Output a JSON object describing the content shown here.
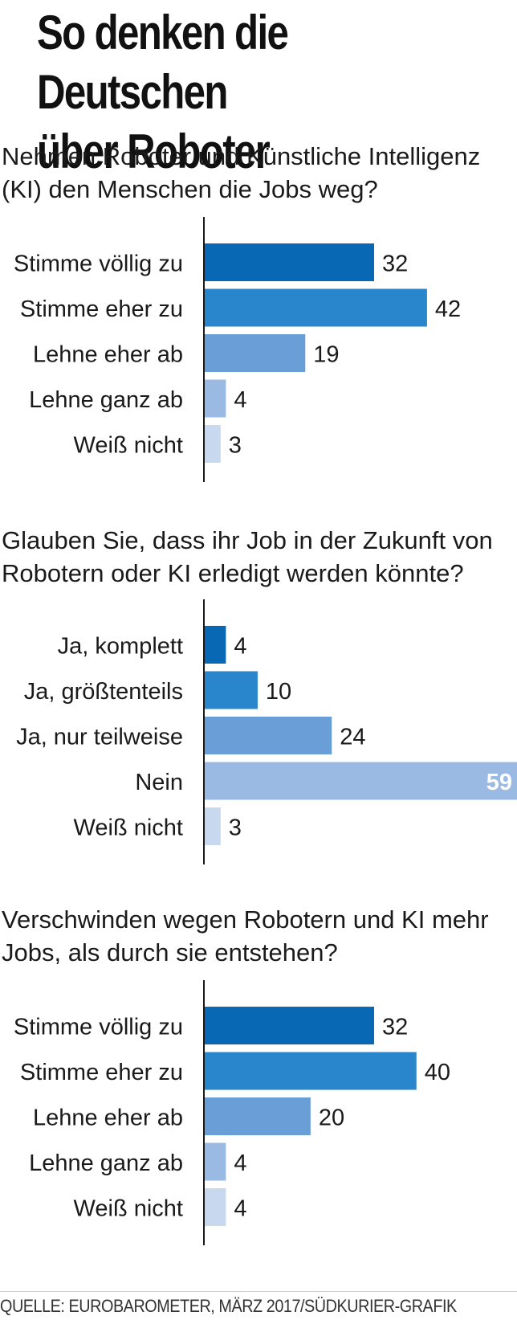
{
  "title": {
    "line1": "So denken die Deutschen",
    "line2": "über Roboter"
  },
  "source": "QUELLE: EUROBAROMETER, MÄRZ 2017/SÜDKURIER-GRAFIK",
  "colors": [
    "#0868b3",
    "#2a86cc",
    "#6a9ed6",
    "#9bbae3",
    "#c8d8ee"
  ],
  "chart_data": [
    {
      "type": "bar",
      "orientation": "horizontal",
      "title": "Nehmen Roboter und Künstliche Intelligenz (KI) den Menschen die Jobs weg?",
      "title_lines": [
        "Nehmen Roboter und Künstliche Intelligenz",
        "(KI) den Menschen die Jobs weg?"
      ],
      "categories": [
        "Stimme völlig zu",
        "Stimme eher zu",
        "Lehne eher ab",
        "Lehne ganz ab",
        "Weiß nicht"
      ],
      "values": [
        32,
        42,
        19,
        4,
        3
      ],
      "xlim": [
        0,
        59
      ]
    },
    {
      "type": "bar",
      "orientation": "horizontal",
      "title": "Glauben Sie, dass ihr Job in der Zukunft von Robotern oder KI erledigt werden könnte?",
      "title_lines": [
        "Glauben Sie, dass ihr Job in der Zukunft von",
        "Robotern oder KI erledigt werden könnte?"
      ],
      "categories": [
        "Ja, komplett",
        "Ja, größtenteils",
        "Ja, nur teilweise",
        "Nein",
        "Weiß nicht"
      ],
      "values": [
        4,
        10,
        24,
        59,
        3
      ],
      "xlim": [
        0,
        59
      ]
    },
    {
      "type": "bar",
      "orientation": "horizontal",
      "title": "Verschwinden wegen Robotern und KI mehr Jobs, als durch sie entstehen?",
      "title_lines": [
        "Verschwinden wegen Robotern und KI mehr",
        "Jobs, als durch sie entstehen?"
      ],
      "categories": [
        "Stimme völlig zu",
        "Stimme eher zu",
        "Lehne eher ab",
        "Lehne ganz ab",
        "Weiß nicht"
      ],
      "values": [
        32,
        40,
        20,
        4,
        4
      ],
      "xlim": [
        0,
        59
      ]
    }
  ]
}
